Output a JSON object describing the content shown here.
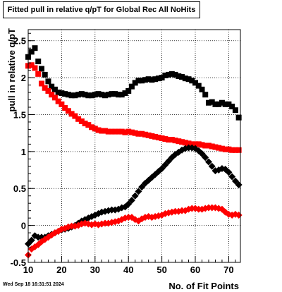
{
  "window": {
    "timestamp": "Wed Sep 18 16:31:51 2024"
  },
  "chart_data": {
    "type": "scatter",
    "title": "Fitted pull in relative q/pT for Global Rec All NoHits",
    "xlabel": "No. of Fit Points",
    "ylabel": "pull in relative q/pT",
    "xlim": [
      10,
      73.5
    ],
    "ylim": [
      -0.5,
      2.65
    ],
    "xticks": [
      10,
      20,
      30,
      40,
      50,
      60,
      70
    ],
    "yticks": [
      -0.5,
      0,
      0.5,
      1,
      1.5,
      2,
      2.5
    ],
    "ytick_labels": [
      "-0.5",
      "0",
      "0.5",
      "1",
      "1.5",
      "2",
      "2.5"
    ],
    "grid": true,
    "series": [
      {
        "marker": "square",
        "color": "#000000",
        "x": [
          10,
          11,
          12,
          13,
          14,
          15,
          16,
          17,
          18,
          19,
          20,
          21,
          22,
          23,
          24,
          25,
          26,
          27,
          28,
          29,
          30,
          31,
          32,
          33,
          34,
          35,
          36,
          37,
          38,
          39,
          40,
          41,
          42,
          43,
          44,
          45,
          46,
          47,
          48,
          49,
          50,
          51,
          52,
          53,
          54,
          55,
          56,
          57,
          58,
          59,
          60,
          61,
          62,
          63,
          64,
          65,
          66,
          67,
          68,
          69,
          70,
          71,
          72,
          73
        ],
        "y": [
          2.28,
          2.35,
          2.4,
          2.22,
          2.12,
          2.04,
          1.95,
          1.88,
          1.84,
          1.8,
          1.79,
          1.78,
          1.77,
          1.76,
          1.76,
          1.77,
          1.78,
          1.77,
          1.76,
          1.76,
          1.77,
          1.78,
          1.77,
          1.76,
          1.77,
          1.78,
          1.78,
          1.77,
          1.77,
          1.79,
          1.82,
          1.88,
          1.93,
          1.96,
          1.96,
          1.97,
          1.98,
          1.97,
          1.98,
          1.99,
          2.0,
          2.03,
          2.04,
          2.05,
          2.04,
          2.02,
          2.01,
          1.99,
          1.98,
          1.96,
          1.93,
          1.89,
          1.84,
          1.77,
          1.66,
          1.67,
          1.64,
          1.64,
          1.66,
          1.64,
          1.64,
          1.61,
          1.56,
          1.46
        ]
      },
      {
        "marker": "square",
        "color": "#ff0000",
        "x": [
          10,
          11,
          12,
          13,
          14,
          15,
          16,
          17,
          18,
          19,
          20,
          21,
          22,
          23,
          24,
          25,
          26,
          27,
          28,
          29,
          30,
          31,
          32,
          33,
          34,
          35,
          36,
          37,
          38,
          39,
          40,
          41,
          42,
          43,
          44,
          45,
          46,
          47,
          48,
          49,
          50,
          51,
          52,
          53,
          54,
          55,
          56,
          57,
          58,
          59,
          60,
          61,
          62,
          63,
          64,
          65,
          66,
          67,
          68,
          69,
          70,
          71,
          72,
          73
        ],
        "y": [
          2.16,
          2.17,
          2.13,
          2.05,
          1.92,
          1.86,
          1.82,
          1.77,
          1.73,
          1.68,
          1.64,
          1.59,
          1.55,
          1.51,
          1.48,
          1.44,
          1.41,
          1.38,
          1.36,
          1.33,
          1.31,
          1.29,
          1.28,
          1.28,
          1.27,
          1.27,
          1.27,
          1.27,
          1.27,
          1.26,
          1.27,
          1.26,
          1.25,
          1.24,
          1.24,
          1.23,
          1.22,
          1.21,
          1.2,
          1.19,
          1.18,
          1.17,
          1.16,
          1.16,
          1.15,
          1.14,
          1.13,
          1.12,
          1.11,
          1.1,
          1.1,
          1.1,
          1.09,
          1.08,
          1.08,
          1.07,
          1.06,
          1.05,
          1.04,
          1.03,
          1.03,
          1.02,
          1.02,
          1.02
        ]
      },
      {
        "marker": "diamond",
        "color": "#000000",
        "x": [
          10,
          11,
          12,
          13,
          14,
          15,
          16,
          17,
          18,
          19,
          20,
          21,
          22,
          23,
          24,
          25,
          26,
          27,
          28,
          29,
          30,
          31,
          32,
          33,
          34,
          35,
          36,
          37,
          38,
          39,
          40,
          41,
          42,
          43,
          44,
          45,
          46,
          47,
          48,
          49,
          50,
          51,
          52,
          53,
          54,
          55,
          56,
          57,
          58,
          59,
          60,
          61,
          62,
          63,
          64,
          65,
          66,
          67,
          68,
          69,
          70,
          71,
          72,
          73
        ],
        "y": [
          -0.25,
          -0.2,
          -0.14,
          -0.16,
          -0.16,
          -0.16,
          -0.14,
          -0.12,
          -0.1,
          -0.08,
          -0.06,
          -0.05,
          -0.04,
          -0.02,
          0.0,
          0.03,
          0.06,
          0.08,
          0.1,
          0.12,
          0.14,
          0.16,
          0.18,
          0.19,
          0.2,
          0.21,
          0.21,
          0.22,
          0.24,
          0.25,
          0.29,
          0.34,
          0.4,
          0.46,
          0.52,
          0.57,
          0.61,
          0.65,
          0.69,
          0.73,
          0.77,
          0.82,
          0.87,
          0.92,
          0.96,
          0.99,
          1.02,
          1.04,
          1.05,
          1.05,
          1.04,
          1.01,
          0.97,
          0.92,
          0.86,
          0.8,
          0.74,
          0.75,
          0.77,
          0.76,
          0.72,
          0.66,
          0.6,
          0.55
        ]
      },
      {
        "marker": "diamond",
        "color": "#ff0000",
        "x": [
          10,
          11,
          12,
          13,
          14,
          15,
          16,
          17,
          18,
          19,
          20,
          21,
          22,
          23,
          24,
          25,
          26,
          27,
          28,
          29,
          30,
          31,
          32,
          33,
          34,
          35,
          36,
          37,
          38,
          39,
          40,
          41,
          42,
          43,
          44,
          45,
          46,
          47,
          48,
          49,
          50,
          51,
          52,
          53,
          54,
          55,
          56,
          57,
          58,
          59,
          60,
          61,
          62,
          63,
          64,
          65,
          66,
          67,
          68,
          69,
          70,
          71,
          72,
          73
        ],
        "y": [
          -0.4,
          -0.32,
          -0.29,
          -0.26,
          -0.22,
          -0.19,
          -0.16,
          -0.13,
          -0.1,
          -0.08,
          -0.05,
          -0.04,
          -0.02,
          -0.01,
          -0.01,
          0.0,
          0.02,
          0.03,
          0.02,
          0.01,
          0.02,
          0.01,
          0.02,
          0.03,
          0.03,
          0.04,
          0.05,
          0.06,
          0.08,
          0.1,
          0.11,
          0.11,
          0.08,
          0.06,
          0.09,
          0.11,
          0.12,
          0.11,
          0.12,
          0.13,
          0.14,
          0.16,
          0.17,
          0.18,
          0.19,
          0.19,
          0.2,
          0.2,
          0.22,
          0.23,
          0.23,
          0.22,
          0.22,
          0.23,
          0.24,
          0.24,
          0.24,
          0.23,
          0.22,
          0.18,
          0.15,
          0.14,
          0.15,
          0.14
        ]
      }
    ]
  }
}
